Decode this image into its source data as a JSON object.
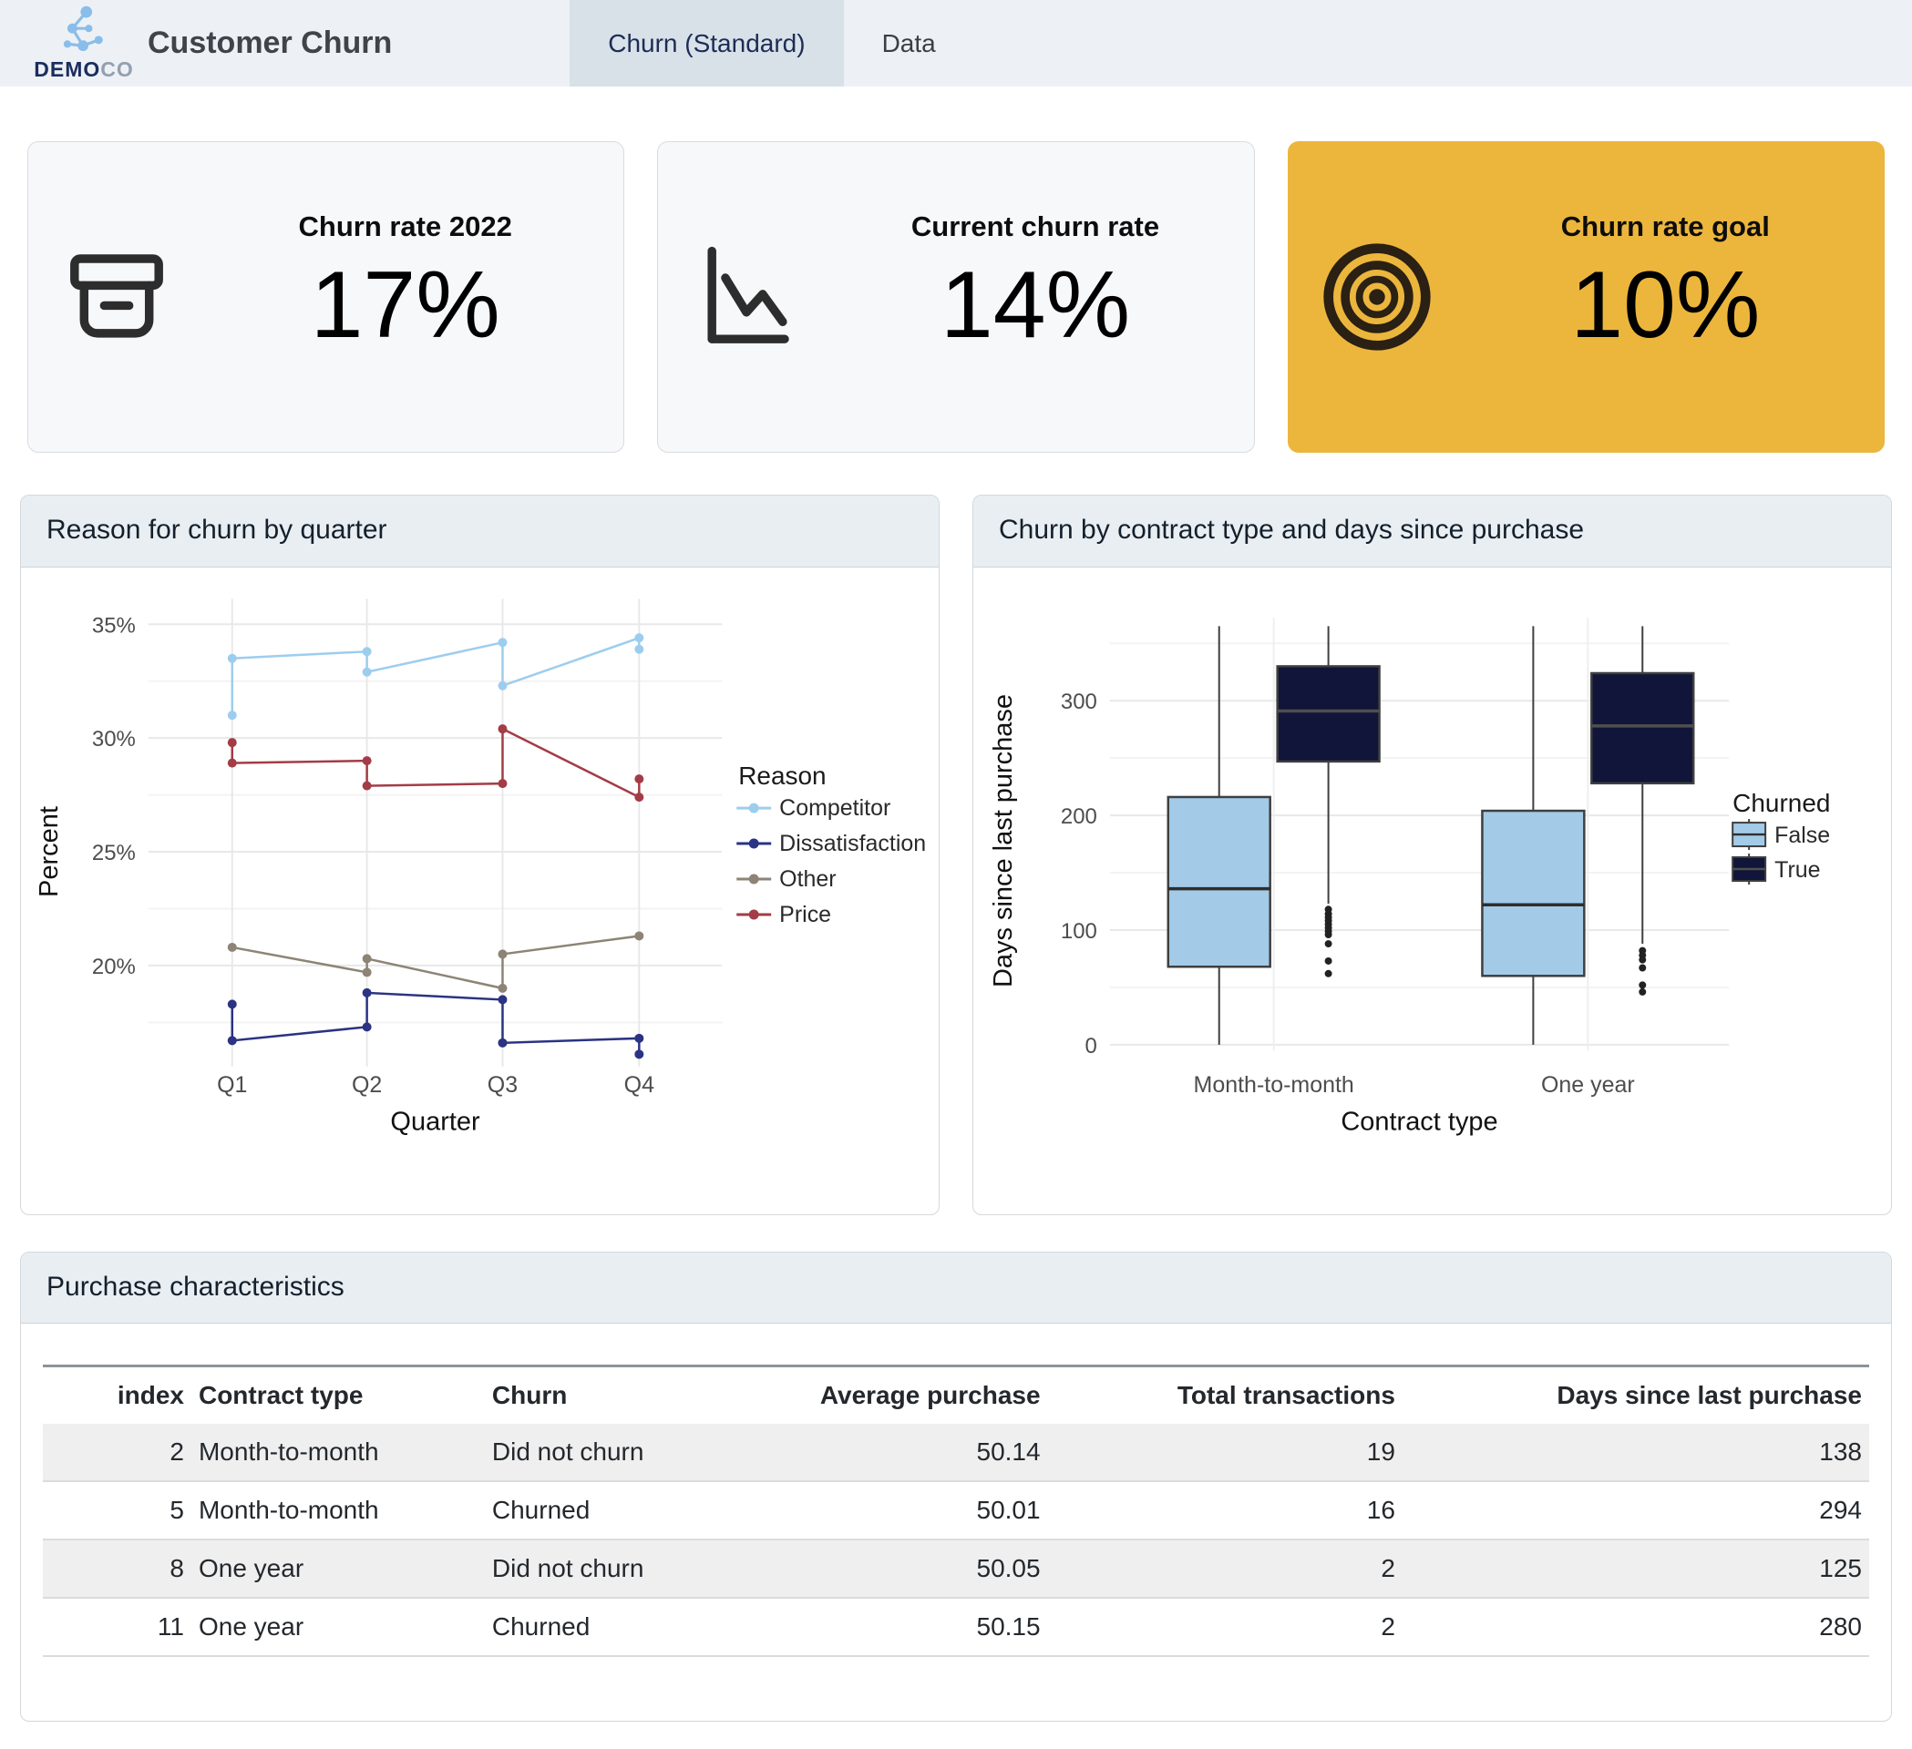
{
  "header": {
    "logo": {
      "bold": "DEMO",
      "light": "CO"
    },
    "title": "Customer Churn",
    "tabs": [
      {
        "label": "Churn (Standard)",
        "active": true
      },
      {
        "label": "Data",
        "active": false
      }
    ]
  },
  "kpis": [
    {
      "title": "Churn rate 2022",
      "value": "17%",
      "icon": "archive-box-icon"
    },
    {
      "title": "Current churn rate",
      "value": "14%",
      "icon": "line-chart-down-icon"
    },
    {
      "title": "Churn rate goal",
      "value": "10%",
      "icon": "target-icon",
      "bg": "#ecb63d"
    }
  ],
  "colors": {
    "accent_yellow": "#ecb63d",
    "header_bg": "#edf1f5",
    "active_tab_bg": "#d8e1e8",
    "panel_header_bg": "#e9eef2"
  },
  "chart_data": [
    {
      "type": "line",
      "panel_title": "Reason for churn by quarter",
      "xlabel": "Quarter",
      "ylabel": "Percent",
      "categories": [
        "Q1",
        "Q2",
        "Q3",
        "Q4"
      ],
      "ytick_values": [
        20,
        25,
        30,
        35
      ],
      "ytick_labels": [
        "20%",
        "25%",
        "30%",
        "35%"
      ],
      "ylim": [
        15.5,
        36.2
      ],
      "grid": true,
      "legend_title": "Reason",
      "legend_position": "right",
      "series": [
        {
          "name": "Competitor",
          "color": "#9dcdee",
          "points": [
            [
              1,
              31.0
            ],
            [
              1,
              33.5
            ],
            [
              2,
              33.8
            ],
            [
              2,
              32.9
            ],
            [
              3,
              34.2
            ],
            [
              3,
              32.3
            ],
            [
              4,
              34.4
            ],
            [
              4,
              33.9
            ]
          ]
        },
        {
          "name": "Dissatisfaction",
          "color": "#2b3383",
          "points": [
            [
              1,
              18.3
            ],
            [
              1,
              16.7
            ],
            [
              2,
              17.3
            ],
            [
              2,
              18.8
            ],
            [
              3,
              18.5
            ],
            [
              3,
              16.6
            ],
            [
              4,
              16.8
            ],
            [
              4,
              16.1
            ]
          ]
        },
        {
          "name": "Other",
          "color": "#8d8476",
          "points": [
            [
              1,
              20.8
            ],
            [
              2,
              19.7
            ],
            [
              2,
              20.3
            ],
            [
              3,
              19.0
            ],
            [
              3,
              20.5
            ],
            [
              4,
              21.3
            ]
          ]
        },
        {
          "name": "Price",
          "color": "#a33c46",
          "points": [
            [
              1,
              29.8
            ],
            [
              1,
              28.9
            ],
            [
              2,
              29.0
            ],
            [
              2,
              27.9
            ],
            [
              3,
              28.0
            ],
            [
              3,
              30.4
            ],
            [
              4,
              27.4
            ],
            [
              4,
              28.2
            ]
          ]
        }
      ]
    },
    {
      "type": "boxplot",
      "panel_title": "Churn by contract type and days since purchase",
      "xlabel": "Contract type",
      "ylabel": "Days since last purchase",
      "categories": [
        "Month-to-month",
        "One year"
      ],
      "ytick_values": [
        0,
        100,
        200,
        300
      ],
      "ylim": [
        -18,
        385
      ],
      "grid": true,
      "legend_title": "Churned",
      "legend_entries": [
        "False",
        "True"
      ],
      "colors": {
        "False": "#a3cbe8",
        "True": "#101539"
      },
      "boxes": [
        {
          "category": "Month-to-month",
          "churned": "False",
          "whisker_low": 0,
          "q1": 68,
          "median": 136,
          "q3": 216,
          "whisker_high": 365,
          "outliers": []
        },
        {
          "category": "Month-to-month",
          "churned": "True",
          "whisker_low": 123,
          "q1": 247,
          "median": 291,
          "q3": 330,
          "whisker_high": 365,
          "outliers": [
            118,
            114,
            111,
            108,
            105,
            102,
            99,
            96,
            88,
            73,
            62
          ]
        },
        {
          "category": "One year",
          "churned": "False",
          "whisker_low": 0,
          "q1": 60,
          "median": 122,
          "q3": 204,
          "whisker_high": 365,
          "outliers": []
        },
        {
          "category": "One year",
          "churned": "True",
          "whisker_low": 88,
          "q1": 228,
          "median": 278,
          "q3": 324,
          "whisker_high": 365,
          "outliers": [
            82,
            78,
            74,
            67,
            52,
            46
          ]
        }
      ]
    }
  ],
  "table": {
    "title": "Purchase characteristics",
    "columns": [
      "index",
      "Contract type",
      "Churn",
      "Average purchase",
      "Total transactions",
      "Days since last purchase"
    ],
    "rows": [
      [
        "2",
        "Month-to-month",
        "Did not churn",
        "50.14",
        "19",
        "138"
      ],
      [
        "5",
        "Month-to-month",
        "Churned",
        "50.01",
        "16",
        "294"
      ],
      [
        "8",
        "One year",
        "Did not churn",
        "50.05",
        "2",
        "125"
      ],
      [
        "11",
        "One year",
        "Churned",
        "50.15",
        "2",
        "280"
      ]
    ]
  }
}
